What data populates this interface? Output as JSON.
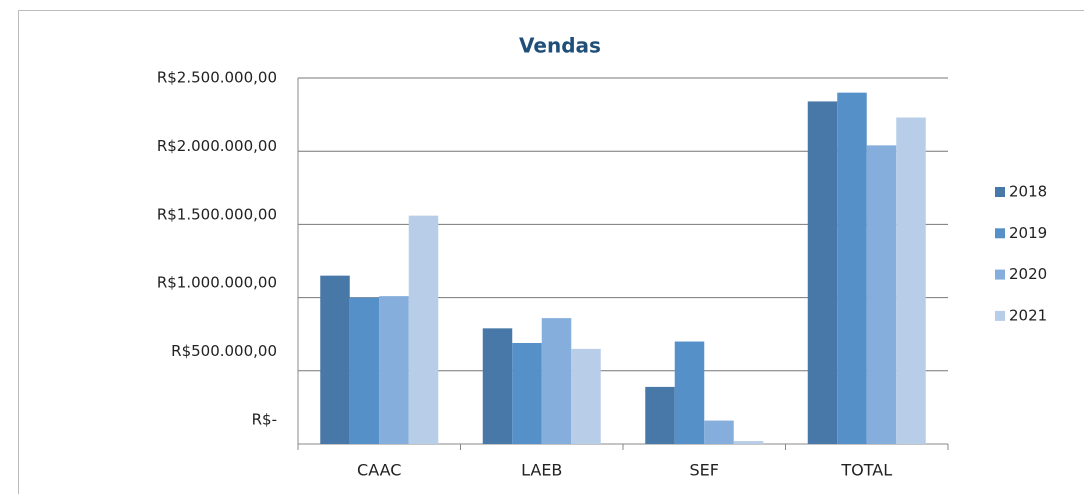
{
  "chart_data": {
    "type": "bar",
    "title": "Vendas",
    "categories": [
      "CAAC",
      "LAEB",
      "SEF",
      "TOTAL"
    ],
    "series": [
      {
        "name": "2018",
        "color": "#4878a8",
        "values": [
          1150000,
          790000,
          390000,
          2340000
        ]
      },
      {
        "name": "2019",
        "color": "#5590c8",
        "values": [
          1000000,
          690000,
          700000,
          2400000
        ]
      },
      {
        "name": "2020",
        "color": "#86aedc",
        "values": [
          1010000,
          860000,
          160000,
          2040000
        ]
      },
      {
        "name": "2021",
        "color": "#b8cde8",
        "values": [
          1560000,
          650000,
          20000,
          2230000
        ]
      }
    ],
    "ylim": [
      0,
      2500000
    ],
    "yticks": [
      {
        "value": 0,
        "label": "R$-"
      },
      {
        "value": 500000,
        "label": "R$500.000,00"
      },
      {
        "value": 1000000,
        "label": "R$1.000.000,00"
      },
      {
        "value": 1500000,
        "label": "R$1.500.000,00"
      },
      {
        "value": 2000000,
        "label": "R$2.000.000,00"
      },
      {
        "value": 2500000,
        "label": "R$2.500.000,00"
      }
    ],
    "grid": true,
    "legend": "right"
  }
}
